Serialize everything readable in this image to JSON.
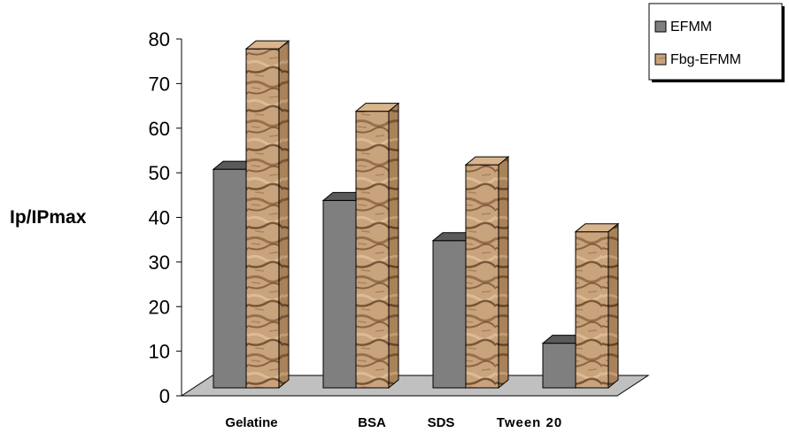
{
  "chart_data": {
    "type": "bar",
    "title": "",
    "xlabel": "",
    "ylabel": "Ip/IPmax",
    "ylim": [
      0,
      80
    ],
    "yticks": [
      0,
      10,
      20,
      30,
      40,
      50,
      60,
      70,
      80
    ],
    "categories": [
      "Gelatine",
      "BSA",
      "SDS",
      "Tween 20"
    ],
    "series": [
      {
        "name": "EFMM",
        "values": [
          49,
          42,
          33,
          10
        ]
      },
      {
        "name": "Fbg-EFMM",
        "values": [
          76,
          62,
          50,
          35
        ]
      }
    ],
    "legend_position": "top-right",
    "grid": false,
    "three_d": true
  },
  "colors": {
    "efmm_front": "#7f7f7f",
    "efmm_top": "#5a5a5a",
    "efmm_side": "#4a4a4a",
    "fbg_base": "#c9a37c",
    "fbg_dark": "#6e4a2c",
    "fbg_top": "#d9b48c",
    "floor": "#c0c0c0"
  },
  "icons": {
    "legend_swatch_efmm": "gray-square-swatch",
    "legend_swatch_fbg": "tan-square-swatch"
  }
}
